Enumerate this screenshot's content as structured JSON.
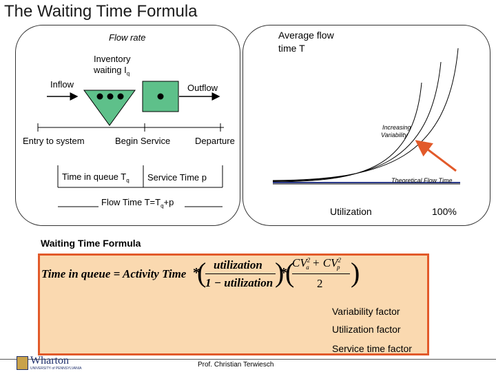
{
  "title": "The Waiting Time Formula",
  "process": {
    "flow_rate": "Flow rate",
    "inventory_line1": "Inventory",
    "inventory_line2": "waiting I",
    "inventory_sub": "q",
    "inflow": "Inflow",
    "outflow": "Outflow",
    "entry": "Entry to system",
    "begin_service": "Begin Service",
    "departure": "Departure",
    "time_in_queue": "Time in queue T",
    "time_in_queue_sub": "q",
    "service_time": "Service Time p",
    "flow_time_a": "Flow Time T=T",
    "flow_time_sub": "q",
    "flow_time_b": "+p"
  },
  "graph": {
    "ylabel_line1": "Average flow",
    "ylabel_line2": "time T",
    "increasing_line1": "Increasing",
    "increasing_line2": "Variability",
    "theoretical": "Theoretical Flow Time",
    "xlabel": "Utilization",
    "x_end": "100%"
  },
  "formula": {
    "heading": "Waiting Time Formula",
    "lhs": "Time in queue = Activity Time",
    "util_num": "utilization",
    "util_den": "1 − utilization",
    "cv_num_a": "CV",
    "cv_sub_a": "a",
    "cv_plus": "+ CV",
    "cv_sub_p": "p",
    "cv_sq": "2",
    "cv_den": "2",
    "variability": "Variability factor",
    "utilization": "Utilization factor",
    "service": "Service time factor"
  },
  "footer": {
    "logo": "Wharton",
    "logo_sub": "UNIVERSITY of PENNSYLVANIA",
    "author": "Prof. Christian Terwiesch"
  },
  "colors": {
    "triangle": "#5ec08a",
    "box": "#5ec08a",
    "accent": "#e25a2a",
    "formula_bg": "#fad9b0"
  }
}
